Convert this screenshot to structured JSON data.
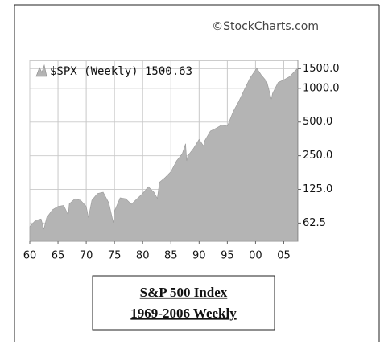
{
  "chart_data": {
    "type": "area",
    "watermark": "©StockCharts.com",
    "title": "$SPX (Weekly) 1500.63",
    "log_scale": true,
    "grid": true,
    "color": "#b4b4b4",
    "x": [
      1960,
      1961,
      1962,
      1962.5,
      1963,
      1964,
      1965,
      1966,
      1966.8,
      1967,
      1968,
      1969,
      1970,
      1970.4,
      1971,
      1972,
      1973,
      1974,
      1974.8,
      1975,
      1976,
      1977,
      1978,
      1979,
      1980,
      1981,
      1982,
      1982.6,
      1983,
      1984,
      1985,
      1986,
      1987,
      1987.6,
      1987.8,
      1988,
      1989,
      1990,
      1990.8,
      1991,
      1992,
      1993,
      1994,
      1995,
      1996,
      1997,
      1998,
      1999,
      2000,
      2000.2,
      2001,
      2002,
      2002.8,
      2003,
      2004,
      2005,
      2006,
      2007.4
    ],
    "values": [
      58,
      66,
      68,
      55,
      70,
      82,
      88,
      90,
      74,
      93,
      103,
      100,
      88,
      70,
      100,
      115,
      118,
      95,
      63,
      80,
      105,
      103,
      92,
      103,
      115,
      132,
      118,
      104,
      145,
      160,
      180,
      225,
      260,
      320,
      225,
      250,
      290,
      350,
      305,
      340,
      415,
      440,
      470,
      460,
      615,
      760,
      970,
      1230,
      1460,
      1520,
      1320,
      1150,
      800,
      900,
      1130,
      1190,
      1270,
      1500.63
    ],
    "xlim": [
      1960,
      2007.5
    ],
    "ylim": [
      43,
      1780
    ],
    "xticks": [
      {
        "value": 1960,
        "label": "60"
      },
      {
        "value": 1965,
        "label": "65"
      },
      {
        "value": 1970,
        "label": "70"
      },
      {
        "value": 1975,
        "label": "75"
      },
      {
        "value": 1980,
        "label": "80"
      },
      {
        "value": 1985,
        "label": "85"
      },
      {
        "value": 1990,
        "label": "90"
      },
      {
        "value": 1995,
        "label": "95"
      },
      {
        "value": 2000,
        "label": "00"
      },
      {
        "value": 2005,
        "label": "05"
      }
    ],
    "yticks": [
      {
        "value": 62.5,
        "label": "62.5"
      },
      {
        "value": 125,
        "label": "125.0"
      },
      {
        "value": 250,
        "label": "250.0"
      },
      {
        "value": 500,
        "label": "500.0"
      },
      {
        "value": 1000,
        "label": "1000.0"
      },
      {
        "value": 1500,
        "label": "1500.0"
      }
    ]
  },
  "caption": {
    "lines": [
      "S&P 500 Index",
      "1969-2006 Weekly"
    ]
  }
}
